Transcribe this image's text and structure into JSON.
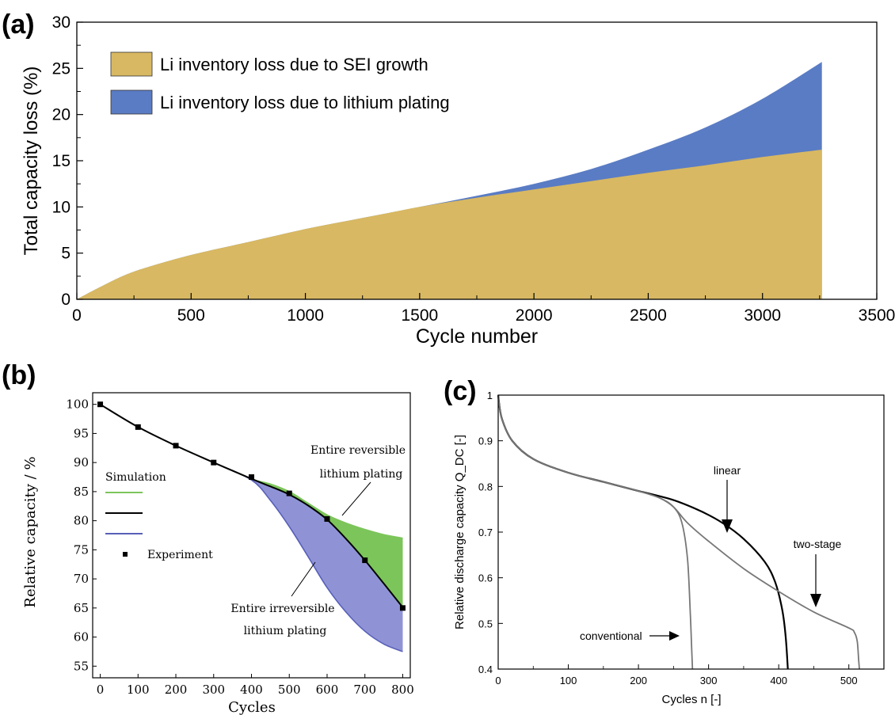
{
  "chart_data": [
    {
      "panel_label": "(a)",
      "type": "area",
      "xlabel": "Cycle number",
      "ylabel": "Total capacity loss (%)",
      "xlim": [
        0,
        3500
      ],
      "ylim": [
        0,
        30
      ],
      "xticks": [
        0,
        500,
        1000,
        1500,
        2000,
        2500,
        3000,
        3500
      ],
      "yticks": [
        0,
        5,
        10,
        15,
        20,
        25,
        30
      ],
      "legend_position": "top-left",
      "x": [
        0,
        100,
        200,
        300,
        500,
        750,
        1000,
        1250,
        1500,
        1750,
        2000,
        2250,
        2500,
        2750,
        3000,
        3260
      ],
      "series": [
        {
          "name": "Li inventory loss due to SEI growth",
          "color": "#d8b862",
          "values": [
            0,
            1.3,
            2.5,
            3.4,
            4.8,
            6.2,
            7.6,
            8.8,
            10.0,
            11.0,
            11.9,
            12.8,
            13.7,
            14.5,
            15.4,
            16.2
          ]
        },
        {
          "name": "Li inventory loss due to lithium plating",
          "color": "#5a7cc4",
          "values": [
            0,
            1.3,
            2.5,
            3.4,
            4.8,
            6.2,
            7.6,
            8.8,
            10.0,
            11.2,
            12.5,
            14.1,
            16.2,
            18.6,
            21.7,
            25.7
          ]
        }
      ]
    },
    {
      "panel_label": "(b)",
      "type": "line",
      "xlabel": "Cycles",
      "ylabel": "Relative capacity / %",
      "xlim": [
        -20,
        820
      ],
      "ylim": [
        53,
        102
      ],
      "xticks": [
        0,
        100,
        200,
        300,
        400,
        500,
        600,
        700,
        800
      ],
      "yticks": [
        55,
        60,
        65,
        70,
        75,
        80,
        85,
        90,
        95,
        100
      ],
      "legend_title": "Simulation",
      "legend_experiment": "Experiment",
      "annotations": [
        "Entire reversible",
        "lithium plating",
        "Entire irreversible",
        "lithium plating"
      ],
      "x": [
        0,
        100,
        200,
        300,
        400,
        450,
        500,
        550,
        600,
        650,
        700,
        750,
        800
      ],
      "series": [
        {
          "color": "#7cc55a",
          "values": [
            100,
            96.1,
            92.9,
            90.0,
            87.2,
            86.3,
            85.0,
            83.0,
            81.0,
            79.6,
            78.5,
            77.6,
            77.0
          ]
        },
        {
          "color": "#000000",
          "values": [
            100,
            96.1,
            92.9,
            90.0,
            87.2,
            85.9,
            84.5,
            82.6,
            80.2,
            76.9,
            73.2,
            69.2,
            65.1
          ]
        },
        {
          "color": "#5860b8",
          "values": [
            100,
            96.1,
            92.9,
            90.0,
            87.0,
            83.5,
            79.0,
            73.8,
            68.5,
            64.3,
            61.0,
            58.8,
            57.5
          ]
        }
      ],
      "experiment": {
        "x": [
          0,
          100,
          200,
          300,
          400,
          500,
          600,
          700,
          800
        ],
        "y": [
          100,
          96.1,
          92.9,
          90.0,
          87.5,
          84.7,
          80.3,
          73.2,
          65.0
        ]
      }
    },
    {
      "panel_label": "(c)",
      "type": "line",
      "xlabel": "Cycles n [-]",
      "ylabel": "Relative discharge capacity Q_DC [-]",
      "xlim": [
        0,
        550
      ],
      "ylim": [
        0.4,
        1.0
      ],
      "xticks": [
        0,
        100,
        200,
        300,
        400,
        500
      ],
      "yticks": [
        0.4,
        0.5,
        0.6,
        0.7,
        0.8,
        0.9,
        1
      ],
      "annotations": [
        "linear",
        "two-stage",
        "conventional"
      ],
      "series": [
        {
          "label": "conventional",
          "color": "#777777",
          "x": [
            0,
            5,
            20,
            50,
            100,
            150,
            200,
            230,
            250,
            262,
            270,
            274,
            276,
            277
          ],
          "y": [
            1.0,
            0.95,
            0.9,
            0.86,
            0.83,
            0.81,
            0.79,
            0.775,
            0.755,
            0.72,
            0.64,
            0.52,
            0.44,
            0.4
          ]
        },
        {
          "label": "linear",
          "color": "#000000",
          "x": [
            0,
            5,
            20,
            50,
            100,
            150,
            200,
            250,
            290,
            320,
            350,
            380,
            395,
            405,
            410,
            413
          ],
          "y": [
            1.0,
            0.95,
            0.9,
            0.86,
            0.83,
            0.81,
            0.79,
            0.77,
            0.745,
            0.72,
            0.685,
            0.635,
            0.59,
            0.53,
            0.47,
            0.4
          ]
        },
        {
          "label": "two-stage",
          "color": "#777777",
          "x": [
            0,
            5,
            20,
            50,
            100,
            150,
            200,
            230,
            250,
            270,
            300,
            350,
            400,
            450,
            500,
            508,
            512,
            514,
            515
          ],
          "y": [
            1.0,
            0.95,
            0.9,
            0.86,
            0.83,
            0.81,
            0.79,
            0.775,
            0.755,
            0.72,
            0.68,
            0.62,
            0.57,
            0.525,
            0.49,
            0.48,
            0.46,
            0.42,
            0.4
          ]
        }
      ]
    }
  ]
}
